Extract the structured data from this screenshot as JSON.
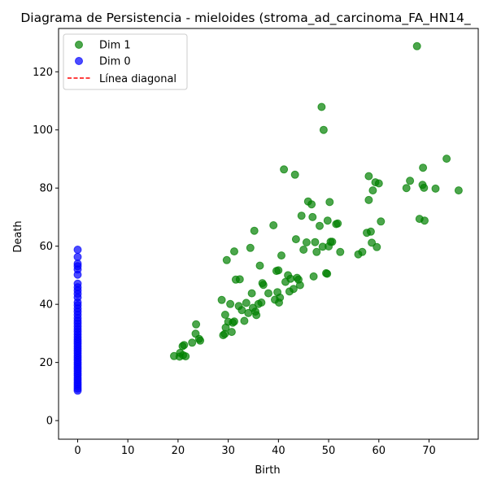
{
  "chart_data": {
    "type": "scatter",
    "title": "Diagrama de Persistencia - mieloides (stroma_ad_carcinoma_FA_HN14_",
    "xlabel": "Birth",
    "ylabel": "Death",
    "xlim": [
      -3.8,
      79.8
    ],
    "ylim": [
      -6.4,
      134.9
    ],
    "xticks": [
      0,
      10,
      20,
      30,
      40,
      50,
      60,
      70
    ],
    "yticks": [
      0,
      20,
      40,
      60,
      80,
      100,
      120
    ],
    "legend_position": "upper-left",
    "grid": false,
    "series": [
      {
        "name": "Dim 1",
        "color": "#008000",
        "points": [
          [
            19.2,
            22.2
          ],
          [
            20.3,
            22.0
          ],
          [
            20.4,
            23.3
          ],
          [
            21.0,
            22.5
          ],
          [
            21.5,
            22.1
          ],
          [
            21.2,
            26.0
          ],
          [
            20.9,
            25.6
          ],
          [
            22.8,
            26.8
          ],
          [
            23.5,
            29.9
          ],
          [
            24.2,
            28.1
          ],
          [
            24.4,
            27.5
          ],
          [
            23.6,
            33.1
          ],
          [
            28.7,
            41.5
          ],
          [
            29.0,
            29.4
          ],
          [
            29.3,
            29.8
          ],
          [
            29.5,
            32.0
          ],
          [
            29.4,
            36.4
          ],
          [
            29.7,
            55.2
          ],
          [
            30.0,
            34.0
          ],
          [
            30.4,
            40.1
          ],
          [
            30.7,
            30.5
          ],
          [
            30.9,
            33.7
          ],
          [
            31.2,
            58.2
          ],
          [
            31.5,
            48.5
          ],
          [
            31.2,
            34.1
          ],
          [
            32.1,
            39.4
          ],
          [
            32.3,
            48.6
          ],
          [
            32.7,
            38.0
          ],
          [
            33.2,
            34.3
          ],
          [
            33.6,
            40.5
          ],
          [
            34.0,
            37.0
          ],
          [
            34.4,
            59.4
          ],
          [
            34.7,
            43.8
          ],
          [
            34.9,
            38.8
          ],
          [
            35.2,
            65.3
          ],
          [
            35.4,
            37.5
          ],
          [
            35.6,
            36.3
          ],
          [
            36.0,
            40.1
          ],
          [
            36.3,
            53.3
          ],
          [
            36.6,
            40.6
          ],
          [
            36.8,
            47.3
          ],
          [
            37.0,
            46.7
          ],
          [
            38.0,
            43.8
          ],
          [
            39.0,
            67.2
          ],
          [
            39.3,
            41.6
          ],
          [
            39.6,
            51.5
          ],
          [
            39.8,
            44.2
          ],
          [
            40.0,
            51.7
          ],
          [
            40.1,
            40.6
          ],
          [
            40.3,
            42.3
          ],
          [
            40.6,
            56.8
          ],
          [
            41.1,
            86.4
          ],
          [
            41.4,
            47.7
          ],
          [
            41.9,
            50.0
          ],
          [
            42.2,
            44.4
          ],
          [
            42.4,
            48.8
          ],
          [
            43.0,
            45.3
          ],
          [
            43.3,
            84.6
          ],
          [
            43.5,
            62.4
          ],
          [
            43.7,
            49.1
          ],
          [
            44.0,
            48.5
          ],
          [
            44.3,
            46.6
          ],
          [
            44.6,
            70.5
          ],
          [
            45.0,
            58.8
          ],
          [
            45.6,
            61.3
          ],
          [
            45.9,
            75.4
          ],
          [
            46.6,
            74.4
          ],
          [
            46.8,
            70.0
          ],
          [
            47.0,
            49.6
          ],
          [
            47.3,
            61.4
          ],
          [
            47.6,
            58.0
          ],
          [
            48.2,
            67.0
          ],
          [
            48.6,
            107.9
          ],
          [
            48.8,
            59.8
          ],
          [
            49.0,
            100.0
          ],
          [
            49.5,
            50.7
          ],
          [
            49.7,
            50.5
          ],
          [
            49.8,
            68.8
          ],
          [
            50.0,
            59.9
          ],
          [
            50.2,
            75.2
          ],
          [
            50.4,
            61.5
          ],
          [
            50.7,
            61.5
          ],
          [
            51.5,
            67.6
          ],
          [
            51.8,
            67.8
          ],
          [
            52.3,
            58.0
          ],
          [
            55.9,
            57.2
          ],
          [
            56.7,
            58.0
          ],
          [
            57.6,
            64.6
          ],
          [
            58.0,
            84.1
          ],
          [
            58.0,
            75.9
          ],
          [
            58.4,
            65.0
          ],
          [
            58.6,
            61.2
          ],
          [
            58.8,
            79.2
          ],
          [
            59.3,
            82.0
          ],
          [
            59.6,
            59.7
          ],
          [
            60.0,
            81.6
          ],
          [
            60.4,
            68.5
          ],
          [
            65.5,
            80.0
          ],
          [
            66.2,
            82.5
          ],
          [
            67.6,
            128.8
          ],
          [
            68.1,
            69.4
          ],
          [
            68.7,
            81.1
          ],
          [
            68.8,
            87.0
          ],
          [
            69.0,
            80.1
          ],
          [
            69.1,
            68.8
          ],
          [
            71.3,
            79.8
          ],
          [
            73.5,
            90.1
          ],
          [
            75.9,
            79.2
          ]
        ]
      },
      {
        "name": "Dim 0",
        "color": "#0000ff",
        "points": [
          [
            0,
            10.3
          ],
          [
            0,
            11.0
          ],
          [
            0,
            11.8
          ],
          [
            0,
            12.5
          ],
          [
            0,
            13.2
          ],
          [
            0,
            14.0
          ],
          [
            0,
            14.7
          ],
          [
            0,
            15.5
          ],
          [
            0,
            16.2
          ],
          [
            0,
            17.0
          ],
          [
            0,
            17.8
          ],
          [
            0,
            18.5
          ],
          [
            0,
            19.3
          ],
          [
            0,
            20.0
          ],
          [
            0,
            20.8
          ],
          [
            0,
            21.6
          ],
          [
            0,
            22.4
          ],
          [
            0,
            23.2
          ],
          [
            0,
            24.0
          ],
          [
            0,
            24.8
          ],
          [
            0,
            25.6
          ],
          [
            0,
            26.4
          ],
          [
            0,
            27.2
          ],
          [
            0,
            28.0
          ],
          [
            0,
            28.8
          ],
          [
            0,
            29.7
          ],
          [
            0,
            30.6
          ],
          [
            0,
            31.5
          ],
          [
            0,
            32.4
          ],
          [
            0,
            33.4
          ],
          [
            0,
            34.3
          ],
          [
            0,
            35.3
          ],
          [
            0,
            36.4
          ],
          [
            0,
            37.5
          ],
          [
            0,
            38.6
          ],
          [
            0,
            39.7
          ],
          [
            0,
            40.7
          ],
          [
            0,
            42.4
          ],
          [
            0,
            43.6
          ],
          [
            0,
            44.8
          ],
          [
            0,
            45.9
          ],
          [
            0,
            47.1
          ],
          [
            0,
            50.2
          ],
          [
            0,
            52.0
          ],
          [
            0,
            53.1
          ],
          [
            0,
            54.0
          ],
          [
            0,
            56.3
          ],
          [
            0,
            58.8
          ]
        ]
      }
    ],
    "reference_line": {
      "name": "Línea diagonal",
      "color": "#ff0000",
      "style": "dashed"
    }
  }
}
